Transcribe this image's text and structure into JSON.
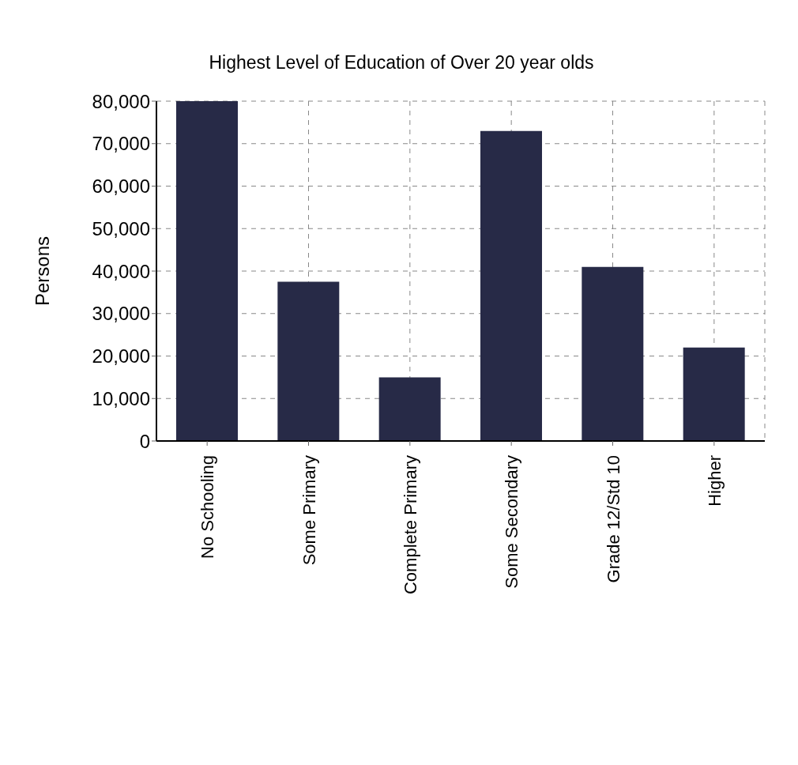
{
  "chart_data": {
    "type": "bar",
    "title": "Highest Level of Education of Over 20 year olds",
    "ylabel": "Persons",
    "categories": [
      "No Schooling",
      "Some Primary",
      "Complete Primary",
      "Some Secondary",
      "Grade 12/Std 10",
      "Higher"
    ],
    "values": [
      80000,
      37500,
      15000,
      73000,
      41000,
      22000
    ],
    "color": "#272a47",
    "ylim": [
      0,
      80000
    ],
    "yticks": [
      0,
      {
        "value": 10000,
        "label": "10,000"
      },
      {
        "value": 20000,
        "label": "20,000"
      },
      {
        "value": 30000,
        "label": "30,000"
      },
      {
        "value": 40000,
        "label": "40,000"
      },
      {
        "value": 50000,
        "label": "50,000"
      },
      {
        "value": 60000,
        "label": "60,000"
      },
      {
        "value": 70000,
        "label": "70,000"
      },
      {
        "value": 80000,
        "label": "80,000"
      }
    ],
    "grid": true
  }
}
